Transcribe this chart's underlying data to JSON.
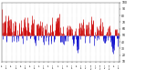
{
  "title": "",
  "ylim": [
    10,
    100
  ],
  "yticks": [
    10,
    20,
    30,
    40,
    50,
    60,
    70,
    80,
    90,
    100
  ],
  "ytick_labels": [
    "10",
    "20",
    "30",
    "40",
    "50",
    "60",
    "70",
    "80",
    "90",
    "100"
  ],
  "bg_color": "#ffffff",
  "grid_color": "#888888",
  "blue_color": "#0000cc",
  "red_color": "#cc0000",
  "n_points": 365,
  "ref_line": 50,
  "bar_lw": 0.5,
  "seed": 12345
}
